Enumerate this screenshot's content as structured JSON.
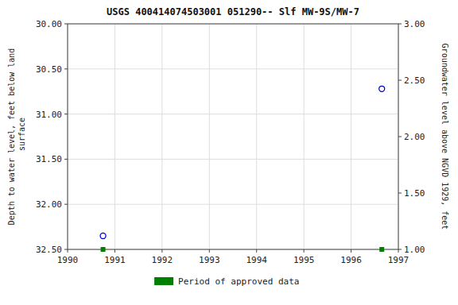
{
  "chart_data": {
    "type": "scatter",
    "title": "USGS 400414074503001 051290-- Slf MW-9S/MW-7",
    "y_label": "Depth to water level, feet below land\n surface",
    "y2_label": "Groundwater level above NGVD 1929, feet",
    "xlim": [
      1990,
      1997
    ],
    "xticks": [
      1990,
      1991,
      1992,
      1993,
      1994,
      1995,
      1996,
      1997
    ],
    "ylim": [
      32.5,
      30.0
    ],
    "yticks": [
      {
        "value": 30.0,
        "label": "30.00"
      },
      {
        "value": 30.5,
        "label": "30.50"
      },
      {
        "value": 31.0,
        "label": "31.00"
      },
      {
        "value": 31.5,
        "label": "31.50"
      },
      {
        "value": 32.0,
        "label": "32.00"
      },
      {
        "value": 32.5,
        "label": "32.50"
      }
    ],
    "y2lim": [
      1.0,
      3.0
    ],
    "y2ticks": [
      {
        "value": 1.0,
        "label": "1.00"
      },
      {
        "value": 1.5,
        "label": "1.50"
      },
      {
        "value": 2.0,
        "label": "2.00"
      },
      {
        "value": 2.5,
        "label": "2.50"
      },
      {
        "value": 3.0,
        "label": "3.00"
      }
    ],
    "grid": true,
    "legend": "bottom",
    "series": [
      {
        "color": "#0000cc",
        "marker": "circle",
        "x": [
          1990.75,
          1996.65
        ],
        "values": [
          32.35,
          30.72
        ]
      },
      {
        "name": "Period of approved data",
        "color": "#008000",
        "marker": "square",
        "x": [
          1990.75,
          1996.65
        ],
        "values": [
          32.5,
          32.5
        ]
      }
    ]
  }
}
